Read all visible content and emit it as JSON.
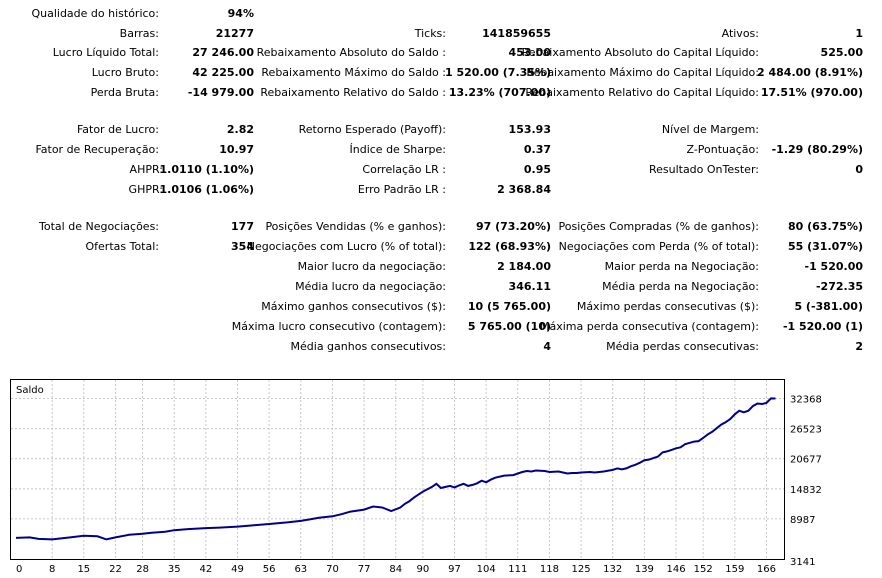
{
  "stats": {
    "qualidade": {
      "label": "Qualidade do histórico:",
      "value": "94%"
    },
    "barras": {
      "label": "Barras:",
      "value": "21277"
    },
    "ticks": {
      "label": "Ticks:",
      "value": "141859655"
    },
    "ativos": {
      "label": "Ativos:",
      "value": "1"
    },
    "lucro_liquido": {
      "label": "Lucro Líquido Total:",
      "value": "27 246.00"
    },
    "rebaix_abs_saldo": {
      "label": "Rebaixamento Absoluto do Saldo :",
      "value": "453.00"
    },
    "rebaix_abs_capital": {
      "label": "Rebaixamento Absoluto do Capital Líquido:",
      "value": "525.00"
    },
    "lucro_bruto": {
      "label": "Lucro Bruto:",
      "value": "42 225.00"
    },
    "rebaix_max_saldo": {
      "label": "Rebaixamento Máximo do Saldo :",
      "value": "1 520.00 (7.35%)"
    },
    "rebaix_max_capital": {
      "label": "Rebaixamento Máximo do Capital Líquido:",
      "value": "2 484.00 (8.91%)"
    },
    "perda_bruta": {
      "label": "Perda Bruta:",
      "value": "-14 979.00"
    },
    "rebaix_rel_saldo": {
      "label": "Rebaixamento Relativo do Saldo :",
      "value": "13.23% (707.00)"
    },
    "rebaix_rel_capital": {
      "label": "Rebaixamento Relativo do Capital Líquido:",
      "value": "17.51% (970.00)"
    },
    "fator_lucro": {
      "label": "Fator de Lucro:",
      "value": "2.82"
    },
    "retorno_esperado": {
      "label": "Retorno Esperado (Payoff):",
      "value": "153.93"
    },
    "nivel_margem": {
      "label": "Nível de Margem:",
      "value": ""
    },
    "fator_recuperacao": {
      "label": "Fator de Recuperação:",
      "value": "10.97"
    },
    "sharpe": {
      "label": "Índice de Sharpe:",
      "value": "0.37"
    },
    "z_pontuacao": {
      "label": "Z-Pontuação:",
      "value": "-1.29 (80.29%)"
    },
    "ahpr": {
      "label": "AHPR:",
      "value": "1.0110 (1.10%)"
    },
    "correlacao_lr": {
      "label": "Correlação LR :",
      "value": "0.95"
    },
    "resultado_ontester": {
      "label": "Resultado OnTester:",
      "value": "0"
    },
    "ghpr": {
      "label": "GHPR:",
      "value": "1.0106 (1.06%)"
    },
    "erro_padrao_lr": {
      "label": "Erro Padrão LR :",
      "value": "2 368.84"
    },
    "total_negociacoes": {
      "label": "Total de Negociações:",
      "value": "177"
    },
    "posicoes_vendidas": {
      "label": "Posições Vendidas (% e ganhos):",
      "value": "97 (73.20%)"
    },
    "posicoes_compradas": {
      "label": "Posições Compradas (% de ganhos):",
      "value": "80 (63.75%)"
    },
    "ofertas_total": {
      "label": "Ofertas Total:",
      "value": "354"
    },
    "negociacoes_lucro": {
      "label": "Negociações com Lucro (% of total):",
      "value": "122 (68.93%)"
    },
    "negociacoes_perda": {
      "label": "Negociações com Perda (% of total):",
      "value": "55 (31.07%)"
    },
    "maior_lucro": {
      "label": "Maior lucro da negociação:",
      "value": "2 184.00"
    },
    "maior_perda": {
      "label": "Maior perda na Negociação:",
      "value": "-1 520.00"
    },
    "media_lucro": {
      "label": "Média lucro da negociação:",
      "value": "346.11"
    },
    "media_perda": {
      "label": "Média perda na Negociação:",
      "value": "-272.35"
    },
    "max_ganhos_consec": {
      "label": "Máximo ganhos consecutivos ($):",
      "value": "10 (5 765.00)"
    },
    "max_perdas_consec": {
      "label": "Máximo perdas consecutivas ($):",
      "value": "5 (-381.00)"
    },
    "max_lucro_consec": {
      "label": "Máxima lucro consecutivo (contagem):",
      "value": "5 765.00 (10)"
    },
    "max_perda_consec": {
      "label": "Máxima perda consecutiva (contagem):",
      "value": "-1 520.00 (1)"
    },
    "media_ganhos_consec": {
      "label": "Média ganhos consecutivos:",
      "value": "4"
    },
    "media_perdas_consec": {
      "label": "Média perdas consecutivas:",
      "value": "2"
    }
  },
  "chart_data": {
    "type": "line",
    "title": "Saldo",
    "xlabel": "",
    "ylabel": "",
    "x_ticks": [
      "0",
      "8",
      "15",
      "22",
      "28",
      "35",
      "42",
      "49",
      "56",
      "63",
      "70",
      "77",
      "84",
      "90",
      "97",
      "104",
      "111",
      "118",
      "125",
      "132",
      "139",
      "146",
      "152",
      "159",
      "166"
    ],
    "y_ticks": [
      "3141",
      "8987",
      "14832",
      "20677",
      "26523",
      "32368"
    ],
    "xlim": [
      0,
      169
    ],
    "ylim": [
      3141,
      35000
    ],
    "grid": true,
    "line_color": "#00008b",
    "series": [
      {
        "name": "",
        "x": [
          0,
          3,
          5,
          8,
          10,
          12,
          15,
          18,
          20,
          22,
          25,
          28,
          30,
          33,
          35,
          38,
          42,
          45,
          49,
          52,
          56,
          60,
          63,
          65,
          67,
          70,
          72,
          74,
          77,
          79,
          81,
          83,
          85,
          86,
          87,
          88,
          90,
          92,
          93,
          94,
          95,
          96,
          97,
          98,
          99,
          100,
          101,
          102,
          103,
          104,
          105,
          106,
          108,
          110,
          111,
          112,
          113,
          114,
          115,
          117,
          118,
          120,
          121,
          122,
          123,
          124,
          125,
          127,
          128,
          130,
          132,
          133,
          134,
          135,
          136,
          137,
          138,
          139,
          140,
          141,
          142,
          143,
          144,
          145,
          146,
          147,
          148,
          150,
          151,
          152,
          153,
          154,
          155,
          156,
          157,
          158,
          159,
          160,
          161,
          162,
          163,
          164,
          165,
          166,
          167,
          168
        ],
        "y": [
          5300,
          5400,
          5100,
          5000,
          5200,
          5400,
          5700,
          5600,
          5000,
          5400,
          5900,
          6100,
          6300,
          6500,
          6800,
          7000,
          7200,
          7300,
          7500,
          7700,
          8000,
          8300,
          8600,
          8900,
          9200,
          9500,
          9900,
          10400,
          10800,
          11400,
          11200,
          10500,
          11200,
          11900,
          12400,
          13100,
          14300,
          15200,
          15800,
          15000,
          15200,
          15400,
          15100,
          15500,
          15800,
          15400,
          15600,
          15900,
          16400,
          16100,
          16600,
          17000,
          17400,
          17500,
          17800,
          18100,
          18300,
          18200,
          18400,
          18300,
          18100,
          18200,
          18000,
          17800,
          17900,
          17900,
          18000,
          18100,
          18000,
          18200,
          18500,
          18800,
          18600,
          18800,
          19200,
          19500,
          19900,
          20400,
          20500,
          20800,
          21100,
          21900,
          22100,
          22400,
          22700,
          22900,
          23500,
          24000,
          24100,
          24700,
          25400,
          25900,
          26600,
          27300,
          27800,
          28400,
          29300,
          30000,
          29700,
          30000,
          30900,
          31400,
          31300,
          31500,
          32400,
          32368
        ]
      }
    ]
  }
}
